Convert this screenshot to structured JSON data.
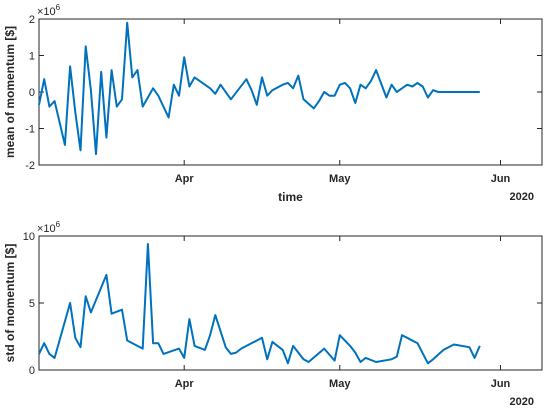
{
  "chart_data": [
    {
      "type": "line",
      "ylabel": "mean of momentum [$]",
      "xlabel": "time",
      "y_multiplier": "×10",
      "y_exponent": "6",
      "year_label": "2020",
      "ylim": [
        -2,
        2
      ],
      "yticks": [
        -2,
        -1,
        0,
        1,
        2
      ],
      "xlim": [
        "2020-03-04",
        "2020-06-09"
      ],
      "xticks": [
        {
          "date": "2020-04-01",
          "label": "Apr"
        },
        {
          "date": "2020-05-01",
          "label": "May"
        },
        {
          "date": "2020-06-01",
          "label": "Jun"
        }
      ],
      "series": [
        {
          "color": "#0072BD",
          "x": [
            "2020-03-04",
            "2020-03-05",
            "2020-03-06",
            "2020-03-07",
            "2020-03-09",
            "2020-03-10",
            "2020-03-11",
            "2020-03-12",
            "2020-03-13",
            "2020-03-14",
            "2020-03-15",
            "2020-03-16",
            "2020-03-17",
            "2020-03-18",
            "2020-03-19",
            "2020-03-20",
            "2020-03-21",
            "2020-03-22",
            "2020-03-23",
            "2020-03-24",
            "2020-03-25",
            "2020-03-26",
            "2020-03-27",
            "2020-03-29",
            "2020-03-30",
            "2020-03-31",
            "2020-04-01",
            "2020-04-02",
            "2020-04-03",
            "2020-04-05",
            "2020-04-06",
            "2020-04-07",
            "2020-04-08",
            "2020-04-10",
            "2020-04-13",
            "2020-04-14",
            "2020-04-15",
            "2020-04-16",
            "2020-04-17",
            "2020-04-18",
            "2020-04-20",
            "2020-04-21",
            "2020-04-22",
            "2020-04-23",
            "2020-04-24",
            "2020-04-26",
            "2020-04-27",
            "2020-04-28",
            "2020-04-29",
            "2020-04-30",
            "2020-05-01",
            "2020-05-02",
            "2020-05-03",
            "2020-05-04",
            "2020-05-05",
            "2020-05-06",
            "2020-05-07",
            "2020-05-08",
            "2020-05-10",
            "2020-05-11",
            "2020-05-12",
            "2020-05-13",
            "2020-05-14",
            "2020-05-15",
            "2020-05-16",
            "2020-05-17",
            "2020-05-18",
            "2020-05-19",
            "2020-05-20",
            "2020-05-21",
            "2020-05-23",
            "2020-05-24",
            "2020-05-25",
            "2020-05-26",
            "2020-05-27",
            "2020-05-28"
          ],
          "values": [
            -0.35,
            0.35,
            -0.4,
            -0.25,
            -1.45,
            0.7,
            -0.55,
            -1.6,
            1.25,
            0.05,
            -1.7,
            0.55,
            -1.25,
            0.6,
            -0.4,
            -0.2,
            1.9,
            0.4,
            0.6,
            -0.4,
            -0.15,
            0.1,
            -0.1,
            -0.7,
            0.2,
            -0.1,
            0.95,
            0.15,
            0.4,
            0.2,
            0.1,
            -0.05,
            0.2,
            -0.2,
            0.35,
            0.05,
            -0.35,
            0.4,
            -0.1,
            0.05,
            0.2,
            0.25,
            0.1,
            0.45,
            -0.2,
            -0.45,
            -0.25,
            0.0,
            -0.1,
            -0.1,
            0.2,
            0.25,
            0.1,
            -0.3,
            0.2,
            0.1,
            0.3,
            0.6,
            -0.15,
            0.2,
            0.0,
            0.1,
            0.2,
            0.15,
            0.25,
            0.15,
            -0.15,
            0.05,
            0.0,
            0.0,
            0.0,
            0.0,
            0.0,
            0.0,
            0.0,
            0.0
          ]
        }
      ]
    },
    {
      "type": "line",
      "ylabel": "std of momentum [$]",
      "xlabel": "",
      "y_multiplier": "×10",
      "y_exponent": "6",
      "year_label": "2020",
      "ylim": [
        0,
        10
      ],
      "yticks": [
        0,
        5,
        10
      ],
      "xlim": [
        "2020-03-04",
        "2020-06-09"
      ],
      "xticks": [
        {
          "date": "2020-04-01",
          "label": "Apr"
        },
        {
          "date": "2020-05-01",
          "label": "May"
        },
        {
          "date": "2020-06-01",
          "label": "Jun"
        }
      ],
      "series": [
        {
          "color": "#0072BD",
          "x": [
            "2020-03-04",
            "2020-03-05",
            "2020-03-06",
            "2020-03-07",
            "2020-03-10",
            "2020-03-11",
            "2020-03-12",
            "2020-03-13",
            "2020-03-14",
            "2020-03-17",
            "2020-03-18",
            "2020-03-20",
            "2020-03-21",
            "2020-03-24",
            "2020-03-25",
            "2020-03-26",
            "2020-03-27",
            "2020-03-28",
            "2020-03-31",
            "2020-04-01",
            "2020-04-02",
            "2020-04-03",
            "2020-04-05",
            "2020-04-06",
            "2020-04-07",
            "2020-04-09",
            "2020-04-10",
            "2020-04-11",
            "2020-04-12",
            "2020-04-16",
            "2020-04-17",
            "2020-04-18",
            "2020-04-20",
            "2020-04-21",
            "2020-04-22",
            "2020-04-24",
            "2020-04-25",
            "2020-04-28",
            "2020-04-30",
            "2020-05-01",
            "2020-05-03",
            "2020-05-04",
            "2020-05-05",
            "2020-05-06",
            "2020-05-08",
            "2020-05-11",
            "2020-05-12",
            "2020-05-13",
            "2020-05-14",
            "2020-05-16",
            "2020-05-18",
            "2020-05-19",
            "2020-05-21",
            "2020-05-23",
            "2020-05-26",
            "2020-05-27",
            "2020-05-28"
          ],
          "values": [
            1.2,
            2.0,
            1.2,
            0.9,
            5.0,
            2.4,
            1.7,
            5.5,
            4.3,
            7.1,
            4.2,
            4.5,
            2.2,
            1.6,
            9.4,
            2.0,
            2.0,
            1.2,
            1.6,
            0.9,
            3.8,
            1.8,
            1.5,
            2.6,
            4.1,
            1.7,
            1.2,
            1.3,
            1.6,
            2.4,
            0.8,
            2.1,
            1.5,
            0.5,
            1.8,
            0.8,
            0.6,
            1.6,
            0.7,
            2.6,
            1.8,
            1.3,
            0.6,
            0.9,
            0.6,
            0.8,
            1.0,
            2.6,
            2.4,
            2.0,
            0.5,
            0.8,
            1.5,
            1.9,
            1.7,
            0.9,
            1.8
          ]
        }
      ]
    }
  ]
}
